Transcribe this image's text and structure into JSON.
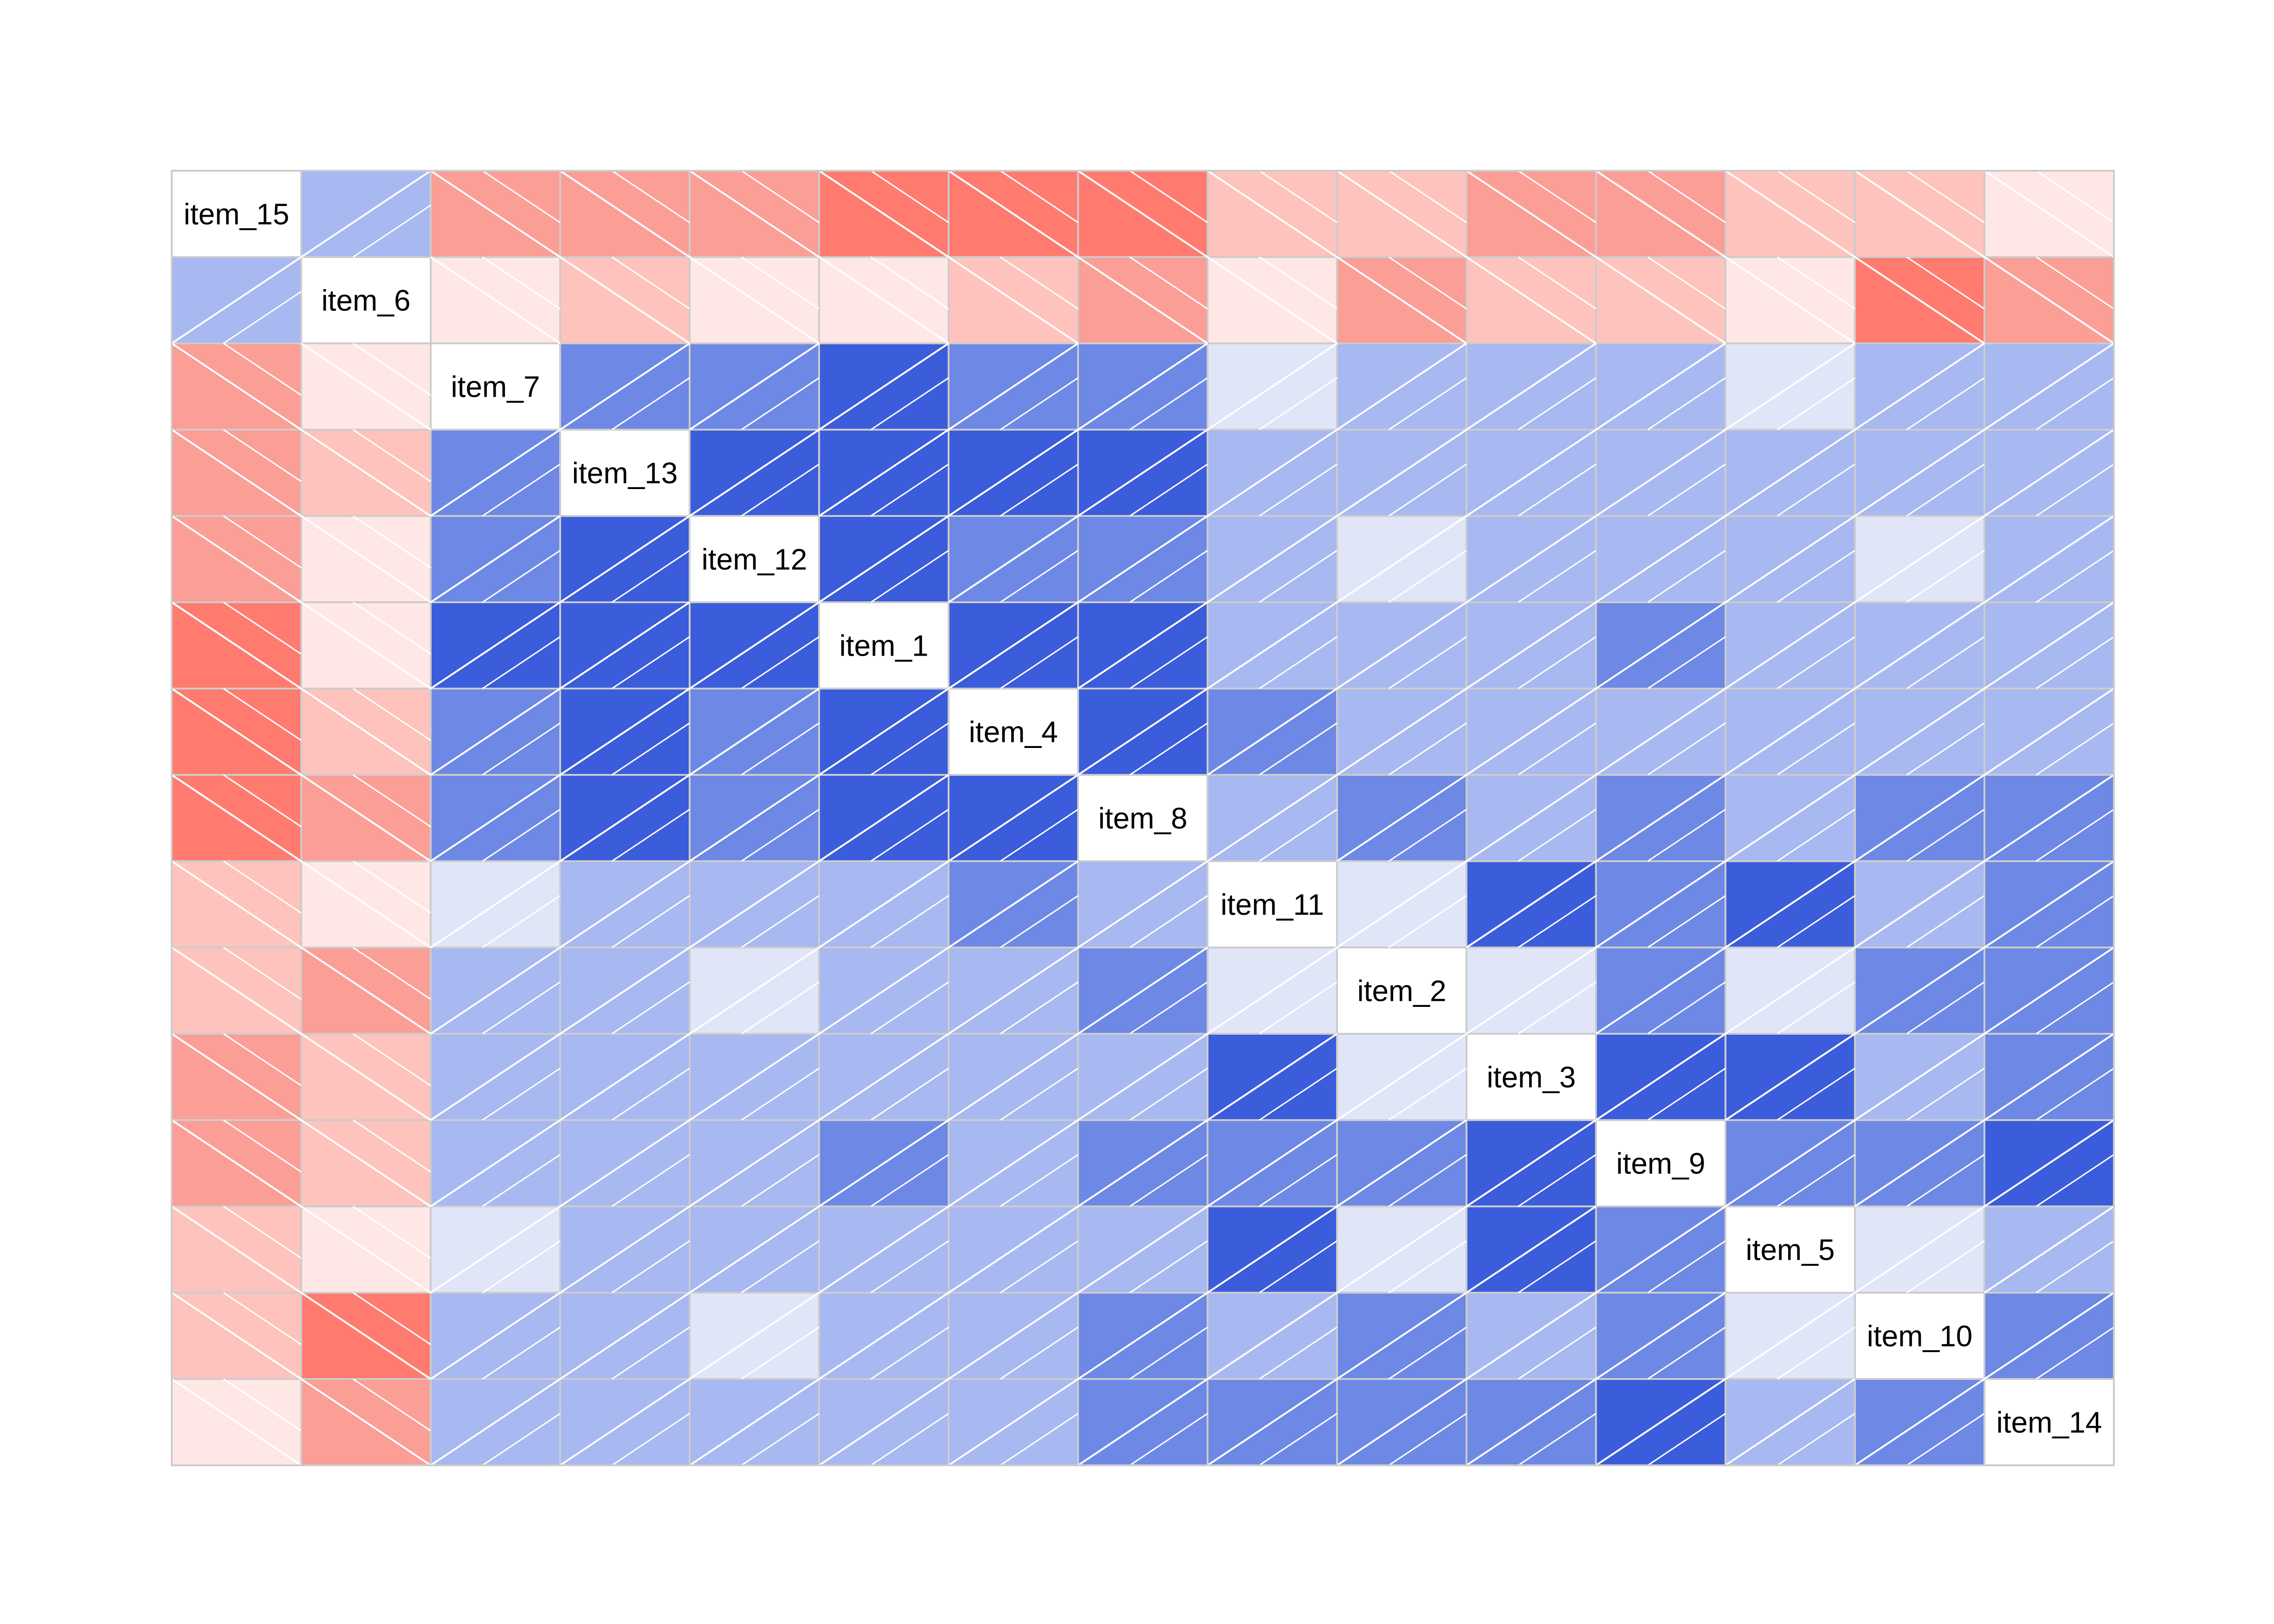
{
  "chart_data": {
    "type": "heatmap",
    "variables": [
      "item_15",
      "item_6",
      "item_7",
      "item_13",
      "item_12",
      "item_1",
      "item_4",
      "item_8",
      "item_11",
      "item_2",
      "item_3",
      "item_9",
      "item_5",
      "item_10",
      "item_14"
    ],
    "diagonal_labels": [
      "item_15",
      "item_6",
      "item_7",
      "item_13",
      "item_12",
      "item_1",
      "item_4",
      "item_8",
      "item_11",
      "item_2",
      "item_3",
      "item_9",
      "item_5",
      "item_10",
      "item_14"
    ],
    "matrix": [
      [
        1.0,
        0.35,
        -0.4,
        -0.4,
        -0.4,
        -0.6,
        -0.6,
        -0.6,
        -0.25,
        -0.25,
        -0.4,
        -0.4,
        -0.25,
        -0.25,
        -0.1
      ],
      [
        0.35,
        1.0,
        -0.1,
        -0.25,
        -0.1,
        -0.1,
        -0.25,
        -0.4,
        -0.1,
        -0.4,
        -0.25,
        -0.25,
        -0.1,
        -0.6,
        -0.4
      ],
      [
        -0.4,
        -0.1,
        1.0,
        0.6,
        0.6,
        0.85,
        0.6,
        0.6,
        0.12,
        0.35,
        0.35,
        0.35,
        0.12,
        0.35,
        0.35
      ],
      [
        -0.4,
        -0.25,
        0.6,
        1.0,
        0.85,
        0.85,
        0.85,
        0.85,
        0.35,
        0.35,
        0.35,
        0.35,
        0.35,
        0.35,
        0.35
      ],
      [
        -0.4,
        -0.1,
        0.6,
        0.85,
        1.0,
        0.85,
        0.6,
        0.6,
        0.35,
        0.12,
        0.35,
        0.35,
        0.35,
        0.12,
        0.35
      ],
      [
        -0.6,
        -0.1,
        0.85,
        0.85,
        0.85,
        1.0,
        0.85,
        0.85,
        0.35,
        0.35,
        0.35,
        0.6,
        0.35,
        0.35,
        0.35
      ],
      [
        -0.6,
        -0.25,
        0.6,
        0.85,
        0.6,
        0.85,
        1.0,
        0.85,
        0.6,
        0.35,
        0.35,
        0.35,
        0.35,
        0.35,
        0.35
      ],
      [
        -0.6,
        -0.4,
        0.6,
        0.85,
        0.6,
        0.85,
        0.85,
        1.0,
        0.35,
        0.6,
        0.35,
        0.6,
        0.35,
        0.6,
        0.6
      ],
      [
        -0.25,
        -0.1,
        0.12,
        0.35,
        0.35,
        0.35,
        0.6,
        0.35,
        1.0,
        0.12,
        0.85,
        0.6,
        0.85,
        0.35,
        0.6
      ],
      [
        -0.25,
        -0.4,
        0.35,
        0.35,
        0.12,
        0.35,
        0.35,
        0.6,
        0.12,
        1.0,
        0.12,
        0.6,
        0.12,
        0.6,
        0.6
      ],
      [
        -0.4,
        -0.25,
        0.35,
        0.35,
        0.35,
        0.35,
        0.35,
        0.35,
        0.85,
        0.12,
        1.0,
        0.85,
        0.85,
        0.35,
        0.6
      ],
      [
        -0.4,
        -0.25,
        0.35,
        0.35,
        0.35,
        0.6,
        0.35,
        0.6,
        0.6,
        0.6,
        0.85,
        1.0,
        0.6,
        0.6,
        0.85
      ],
      [
        -0.25,
        -0.1,
        0.12,
        0.35,
        0.35,
        0.35,
        0.35,
        0.35,
        0.85,
        0.12,
        0.85,
        0.6,
        1.0,
        0.12,
        0.35
      ],
      [
        -0.25,
        -0.6,
        0.35,
        0.35,
        0.12,
        0.35,
        0.35,
        0.6,
        0.35,
        0.6,
        0.35,
        0.6,
        0.12,
        1.0,
        0.6
      ],
      [
        -0.1,
        -0.4,
        0.35,
        0.35,
        0.35,
        0.35,
        0.35,
        0.6,
        0.6,
        0.6,
        0.6,
        0.85,
        0.35,
        0.6,
        1.0
      ]
    ],
    "color_scale": {
      "negative_strong": "#ff7b6f",
      "negative_medium": "#fa9e96",
      "negative_light": "#fdc3bc",
      "negative_faint": "#ffe7e6",
      "positive_faint": "#e0e6f8",
      "positive_light": "#a8b8f0",
      "positive_medium": "#6d89e5",
      "positive_strong": "#3b5ddb",
      "grid": "#cccccc",
      "hatch": "#ffffff"
    },
    "hatch_direction": {
      "positive": "forward-slash",
      "negative": "back-slash"
    },
    "lower_panel": "shade",
    "upper_panel": "shade",
    "diagonal_panel": "label",
    "row_offset_pattern": "staggered"
  }
}
